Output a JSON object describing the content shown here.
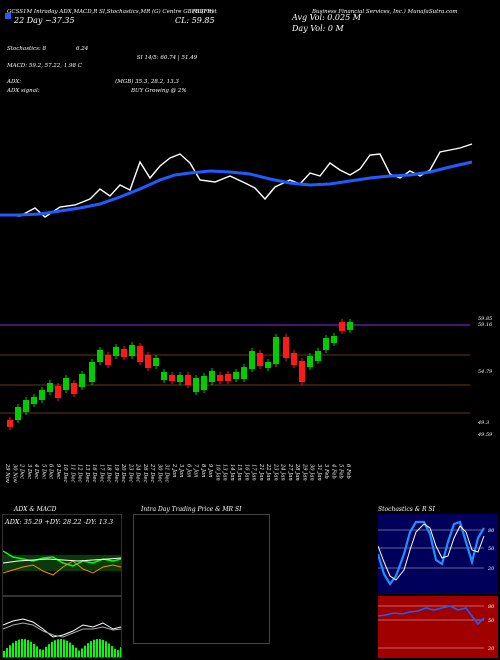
{
  "header": {
    "line1": "GCSS1M Intraday ADX,MACD,R      SI,Stochastics,MR         (G) Centre GBFR       (First",
    "symbol_code": "(GBFR)",
    "title_right": "Business Financial Services, Inc.) MunafaSutra.com",
    "line2": "22 Day ~37.35",
    "close": "CL: 59.85",
    "avg_vol": "Avg Vol: 0.025  M",
    "day_vol": "Day Vol: 0   M"
  },
  "indicators": {
    "stochastics_label": "Stochastics: 8",
    "stochastics_val": "6.24",
    "si_line": "SI 14/5: 60.74  |  51.49",
    "macd_line": "MACD: 59.2,  57.22,  1.98  C",
    "adx_label": "ADX:",
    "adx_values": "(MGB) 35.3,  28.2,  13.3",
    "adx_signal_label": "ADX  signal:",
    "adx_signal": "BUY Growing @ 2%"
  },
  "price_axis": [
    "59.85",
    "59.16",
    "54.79",
    "49.3",
    "49.59"
  ],
  "dates": [
    "29 Nov",
    "30 Nov",
    "2 Dec",
    "3 Dec",
    "4 Dec",
    "5 Dec",
    "6 Dec",
    "9 Dec",
    "10 Dec",
    "11 Dec",
    "12 Dec",
    "13 Dec",
    "16 Dec",
    "17 Dec",
    "18 Dec",
    "19 Dec",
    "20 Dec",
    "23 Dec",
    "24 Dec",
    "26 Dec",
    "27 Dec",
    "30 Dec",
    "31 Dec",
    "2 Jan",
    "3 Jan",
    "6 Jan",
    "7 Jan",
    "8 Jan",
    "9 Jan",
    "10 Jan",
    "13 Jan",
    "14 Jan",
    "15 Jan",
    "16 Jan",
    "17 Jan",
    "21 Jan",
    "22 Jan",
    "23 Jan",
    "24 Jan",
    "27 Jan",
    "28 Jan",
    "29 Jan",
    "30 Jan",
    "31 Jan",
    "3 Feb",
    "4 Feb",
    "5 Feb",
    "6 Feb"
  ],
  "bottom": {
    "left_title": "ADX  & MACD",
    "left_values": "ADX: 35.29  +DY: 28.22  -DY: 13.3",
    "center_title": "Intra  Day Trading Price  & MR                  SI",
    "right_title": "Stochastics & R               SI",
    "stoch_ticks": [
      "80",
      "50",
      "20"
    ],
    "rsi_ticks": [
      "80",
      "50",
      "20"
    ]
  },
  "colors": {
    "up": "#00cc00",
    "down": "#ff1a1a",
    "ma": "#1e5cff",
    "price_line": "#ffffff",
    "grid": "#8b4a12",
    "resistance": "#8a2be2",
    "stoch_bg": "#00005a",
    "rsi_bg": "#a00000"
  }
}
